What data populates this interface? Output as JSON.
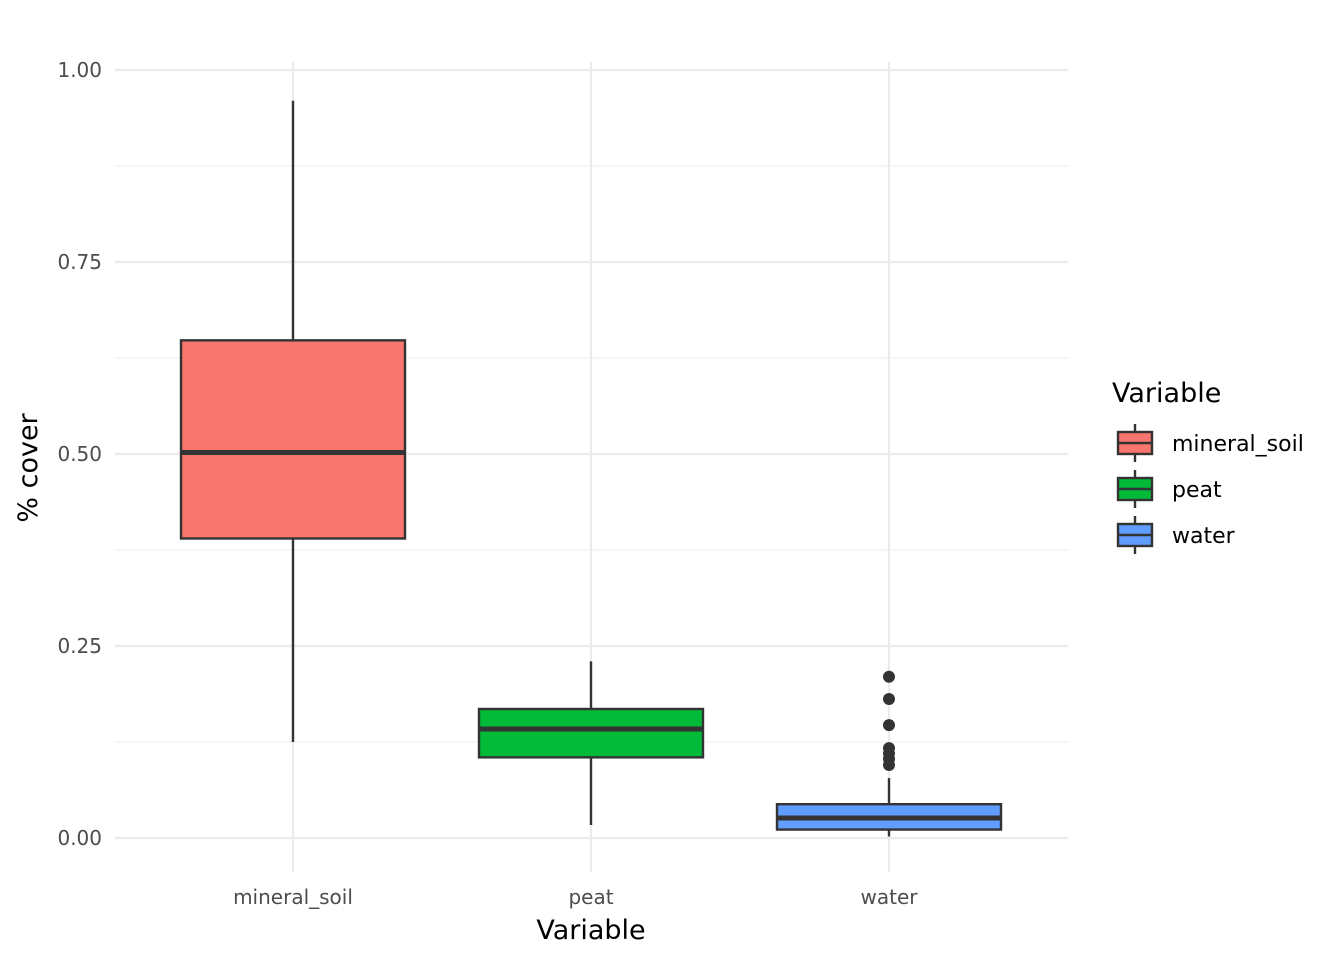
{
  "chart_data": {
    "type": "boxplot",
    "xlabel": "Variable",
    "ylabel": "% cover",
    "ylim": [
      -0.04,
      1.01
    ],
    "y_ticks": [
      {
        "value": 0.0,
        "label": "0.00"
      },
      {
        "value": 0.25,
        "label": "0.25"
      },
      {
        "value": 0.5,
        "label": "0.50"
      },
      {
        "value": 0.75,
        "label": "0.75"
      },
      {
        "value": 1.0,
        "label": "1.00"
      }
    ],
    "grid": true,
    "legend": {
      "title": "Variable",
      "position": "right"
    },
    "categories": [
      "mineral_soil",
      "peat",
      "water"
    ],
    "boxes": [
      {
        "name": "mineral_soil",
        "color": "#F8766D",
        "lower_whisker": 0.125,
        "q1": 0.39,
        "median": 0.502,
        "q3": 0.648,
        "upper_whisker": 0.96,
        "outliers": []
      },
      {
        "name": "peat",
        "color": "#00BA38",
        "lower_whisker": 0.017,
        "q1": 0.105,
        "median": 0.142,
        "q3": 0.168,
        "upper_whisker": 0.23,
        "outliers": []
      },
      {
        "name": "water",
        "color": "#619CFF",
        "lower_whisker": 0.002,
        "q1": 0.011,
        "median": 0.026,
        "q3": 0.044,
        "upper_whisker": 0.078,
        "outliers": [
          0.21,
          0.181,
          0.147,
          0.117,
          0.11,
          0.103,
          0.095
        ]
      }
    ]
  }
}
